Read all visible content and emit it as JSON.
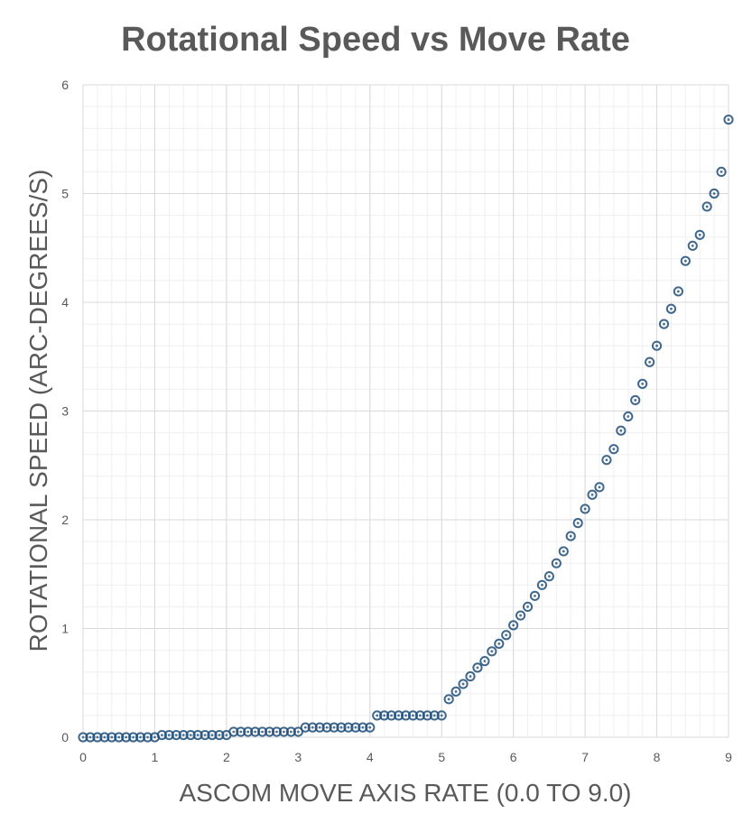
{
  "chart_data": {
    "type": "scatter",
    "title": "Rotational Speed vs  Move Rate",
    "xlabel": "ASCOM MOVE AXIS RATE (0.0 TO 9.0)",
    "ylabel": "ROTATIONAL SPEED (ARC-DEGREES/S)",
    "xlim": [
      0,
      9
    ],
    "ylim": [
      0,
      6
    ],
    "x_ticks": [
      "0",
      "1",
      "2",
      "3",
      "4",
      "5",
      "6",
      "7",
      "8",
      "9"
    ],
    "y_ticks": [
      "0",
      "1",
      "2",
      "3",
      "4",
      "5",
      "6"
    ],
    "grid": true,
    "legend": "none",
    "marker_color": "#1f4e79",
    "series": [
      {
        "x": [
          0.0,
          0.1,
          0.2,
          0.3,
          0.4,
          0.5,
          0.6,
          0.7,
          0.8,
          0.9,
          1.0,
          1.1,
          1.2,
          1.3,
          1.4,
          1.5,
          1.6,
          1.7,
          1.8,
          1.9,
          2.0,
          2.1,
          2.2,
          2.3,
          2.4,
          2.5,
          2.6,
          2.7,
          2.8,
          2.9,
          3.0,
          3.1,
          3.2,
          3.3,
          3.4,
          3.5,
          3.6,
          3.7,
          3.8,
          3.9,
          4.0,
          4.1,
          4.2,
          4.3,
          4.4,
          4.5,
          4.6,
          4.7,
          4.8,
          4.9,
          5.0,
          5.1,
          5.2,
          5.3,
          5.4,
          5.5,
          5.6,
          5.7,
          5.8,
          5.9,
          6.0,
          6.1,
          6.2,
          6.3,
          6.4,
          6.5,
          6.6,
          6.7,
          6.8,
          6.9,
          7.0,
          7.1,
          7.2,
          7.3,
          7.4,
          7.5,
          7.6,
          7.7,
          7.8,
          7.9,
          8.0,
          8.1,
          8.2,
          8.3,
          8.4,
          8.5,
          8.6,
          8.7,
          8.8,
          8.9,
          9.0
        ],
        "y": [
          0.0,
          0.0,
          0.0,
          0.0,
          0.0,
          0.0,
          0.0,
          0.0,
          0.0,
          0.0,
          0.0,
          0.02,
          0.02,
          0.02,
          0.02,
          0.02,
          0.02,
          0.02,
          0.02,
          0.02,
          0.02,
          0.05,
          0.05,
          0.05,
          0.05,
          0.05,
          0.05,
          0.05,
          0.05,
          0.05,
          0.05,
          0.09,
          0.09,
          0.09,
          0.09,
          0.09,
          0.09,
          0.09,
          0.09,
          0.09,
          0.09,
          0.2,
          0.2,
          0.2,
          0.2,
          0.2,
          0.2,
          0.2,
          0.2,
          0.2,
          0.2,
          0.35,
          0.42,
          0.49,
          0.56,
          0.64,
          0.7,
          0.79,
          0.86,
          0.94,
          1.03,
          1.12,
          1.2,
          1.3,
          1.4,
          1.48,
          1.6,
          1.71,
          1.85,
          1.97,
          2.1,
          2.23,
          2.3,
          2.55,
          2.65,
          2.82,
          2.95,
          3.1,
          3.25,
          3.45,
          3.6,
          3.8,
          3.94,
          4.1,
          4.38,
          4.52,
          4.62,
          4.88,
          5.0,
          5.2,
          5.68
        ]
      }
    ]
  }
}
